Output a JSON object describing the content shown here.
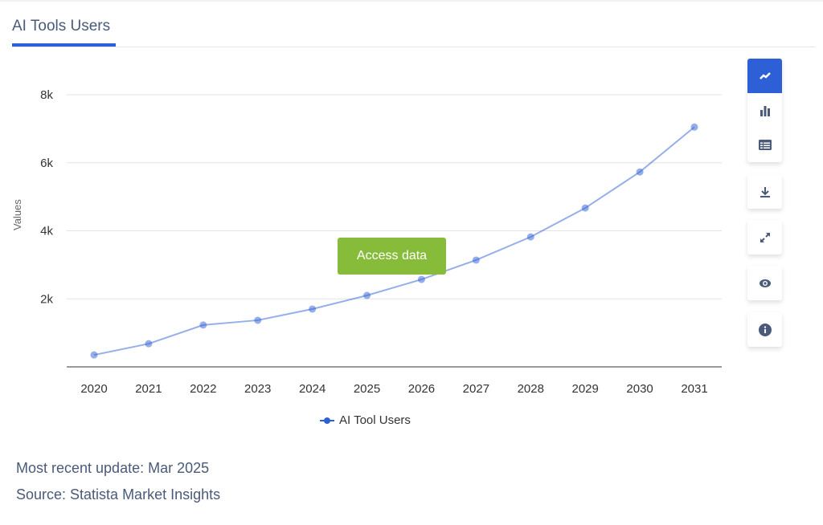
{
  "header": {
    "title": "AI Tools Users"
  },
  "chart_data": {
    "type": "line",
    "title": "AI Tools Users",
    "xlabel": "",
    "ylabel": "Values",
    "categories": [
      "2020",
      "2021",
      "2022",
      "2023",
      "2024",
      "2025",
      "2026",
      "2027",
      "2028",
      "2029",
      "2030",
      "2031"
    ],
    "series": [
      {
        "name": "AI Tool Users",
        "color": "#2d5fd6",
        "values": [
          350,
          680,
          1230,
          1370,
          1700,
          2100,
          2570,
          3140,
          3820,
          4670,
          5730,
          7050
        ]
      }
    ],
    "ylim": [
      0,
      8000
    ],
    "yticks": [
      {
        "v": 2000,
        "label": "2k"
      },
      {
        "v": 4000,
        "label": "4k"
      },
      {
        "v": 6000,
        "label": "6k"
      },
      {
        "v": 8000,
        "label": "8k"
      }
    ],
    "grid": true,
    "legend": "bottom-center"
  },
  "access_button": "Access data",
  "toolbar": [
    "line-chart-icon",
    "bar-chart-icon",
    "table-icon",
    "download-icon",
    "expand-icon",
    "eye-icon",
    "info-icon"
  ],
  "footer": {
    "update": "Most recent update: Mar 2025",
    "source": "Source: Statista Market Insights"
  }
}
